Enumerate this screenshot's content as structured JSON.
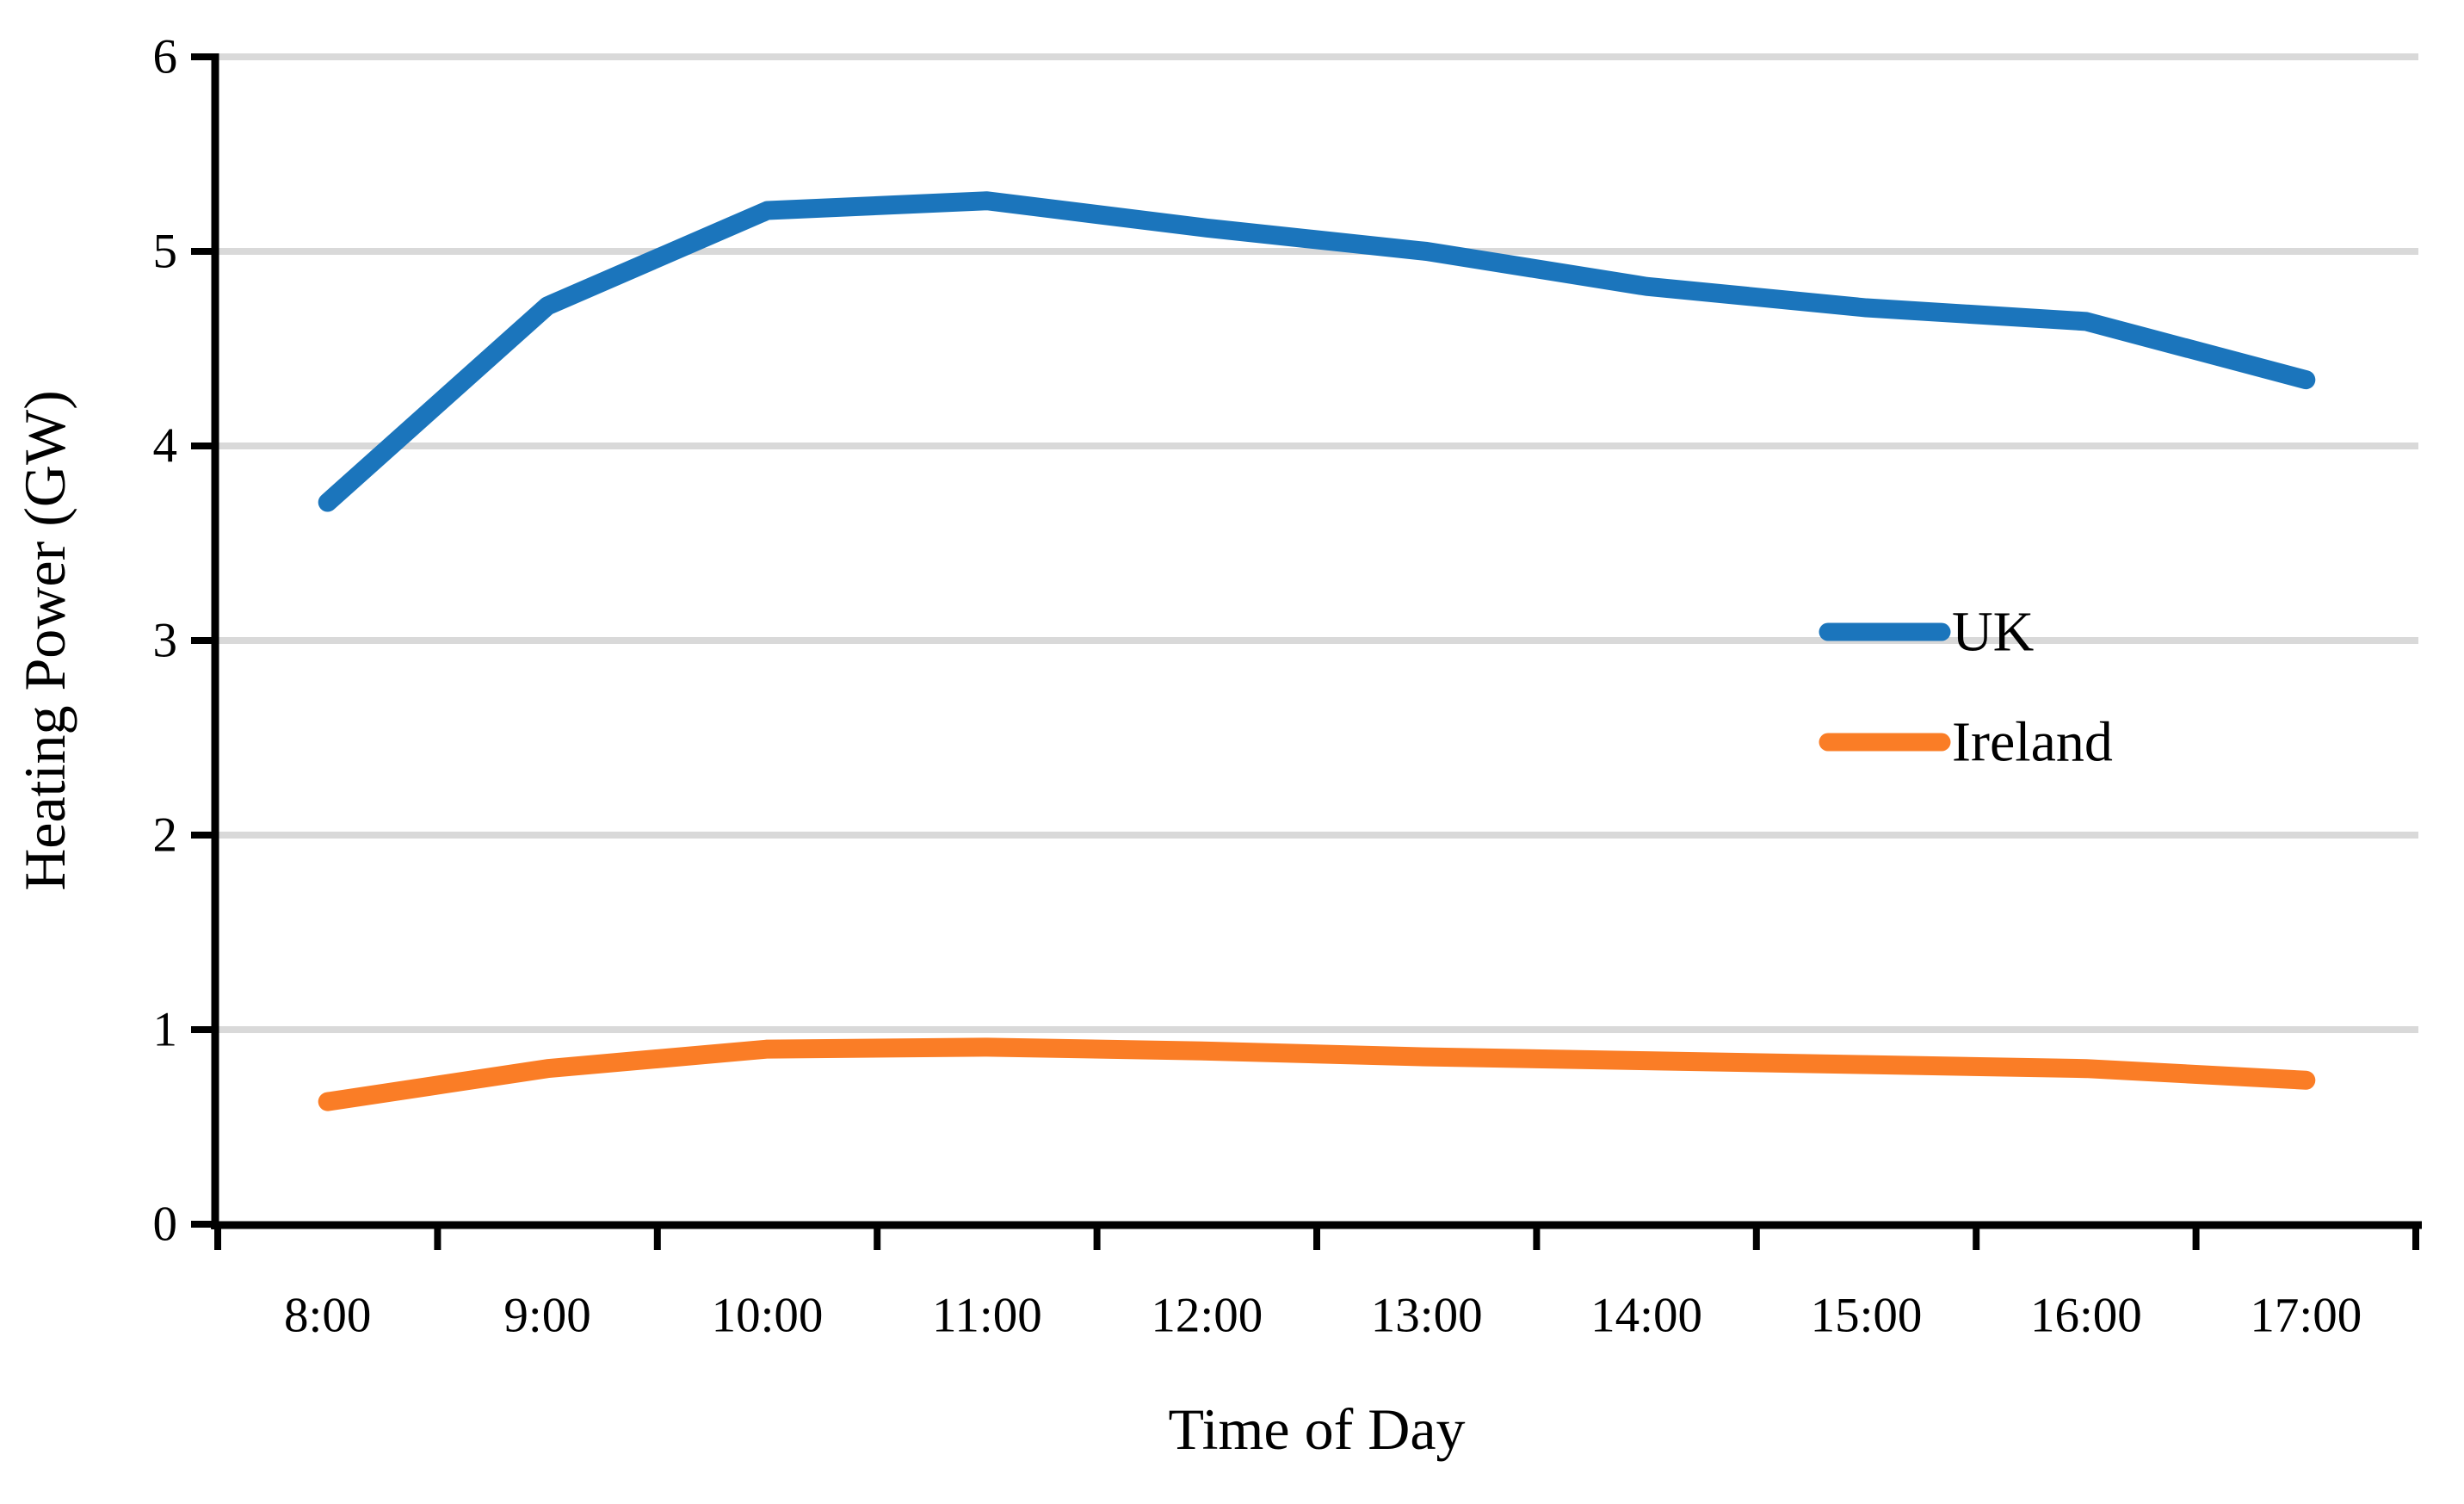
{
  "chart_data": {
    "type": "line",
    "title": "",
    "categories": [
      "8:00",
      "9:00",
      "10:00",
      "11:00",
      "12:00",
      "13:00",
      "14:00",
      "15:00",
      "16:00",
      "17:00"
    ],
    "series": [
      {
        "name": "UK",
        "color": "#1B75BC",
        "values": [
          3.71,
          4.72,
          5.21,
          5.26,
          5.12,
          5.0,
          4.82,
          4.71,
          4.64,
          4.34
        ]
      },
      {
        "name": "Ireland",
        "color": "#FA7D26",
        "values": [
          0.63,
          0.8,
          0.9,
          0.91,
          0.89,
          0.86,
          0.84,
          0.82,
          0.8,
          0.74
        ]
      }
    ],
    "xlabel": "Time of Day",
    "ylabel": "Heating Power (GW)",
    "ylim": [
      0,
      6
    ],
    "yticks": [
      0,
      1,
      2,
      3,
      4,
      5,
      6
    ],
    "grid": true,
    "gridline_color": "#D9D9D9",
    "axis_color": "#000000",
    "legend_position": "middle-right"
  }
}
